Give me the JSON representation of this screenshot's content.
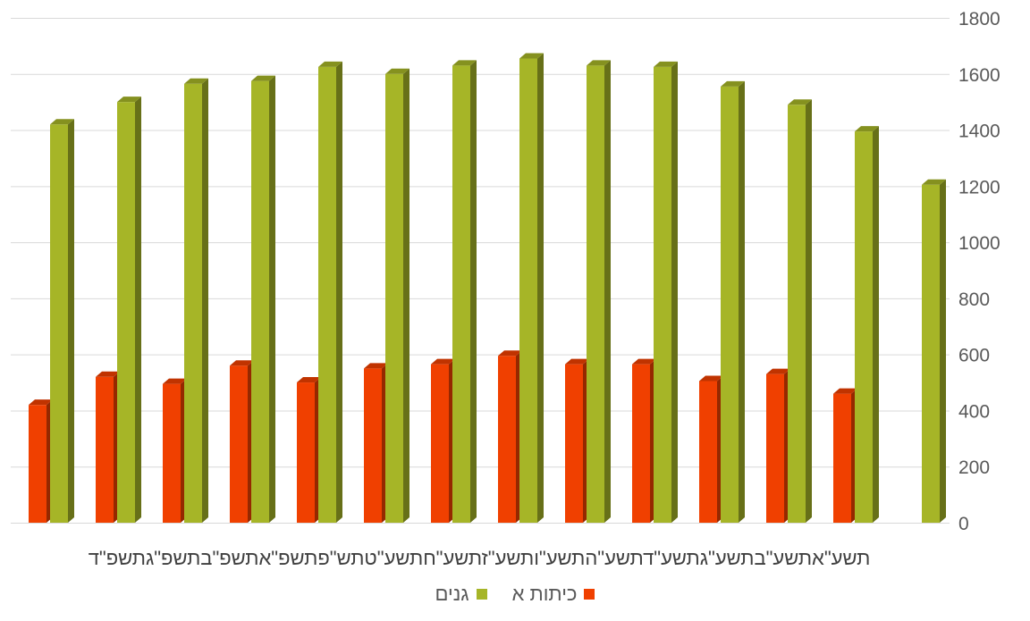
{
  "chart_data": {
    "type": "bar",
    "title": "",
    "xlabel": "",
    "ylabel": "",
    "ylim": [
      0,
      1800
    ],
    "yticks": [
      0,
      200,
      400,
      600,
      800,
      1000,
      1200,
      1400,
      1600,
      1800
    ],
    "y_axis_side": "right",
    "grid": true,
    "legend_position": "bottom",
    "categories_text": "תשע\"אתשע\"בתשע\"גתשע\"דתשע\"התשע\"ותשע\"זתשע\"חתשע\"טתש\"פתשפ\"אתשפ\"בתשפ\"גתשפ\"ד",
    "categories": [
      "תשפ\"ד",
      "תשפ\"ג",
      "תשפ\"ב",
      "תשפ\"א",
      "תש\"פ",
      "תשע\"ט",
      "תשע\"ח",
      "תשע\"ז",
      "תשע\"ו",
      "תשע\"ה",
      "תשע\"ד",
      "תשע\"ג",
      "תשע\"ב",
      "תשע\"א"
    ],
    "series": [
      {
        "name": "כיתות א",
        "color": "#f04000",
        "values": [
          420,
          520,
          495,
          560,
          500,
          550,
          565,
          595,
          565,
          565,
          505,
          530,
          460,
          null
        ]
      },
      {
        "name": "גנים",
        "color": "#a6b527",
        "values": [
          1420,
          1500,
          1565,
          1575,
          1625,
          1600,
          1630,
          1655,
          1630,
          1625,
          1555,
          1490,
          1395,
          1205
        ]
      }
    ]
  }
}
